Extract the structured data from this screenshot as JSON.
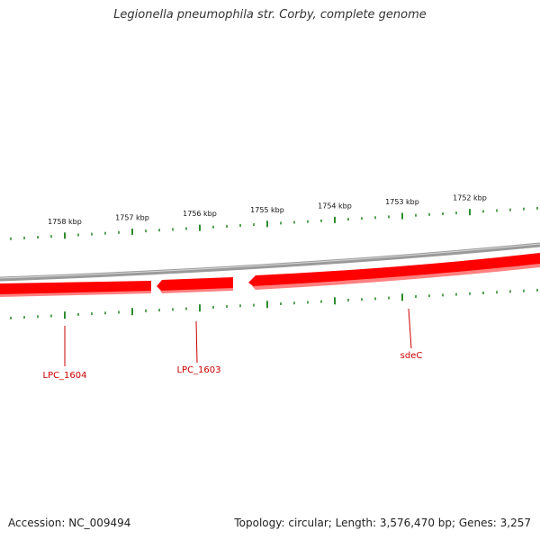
{
  "title": "Legionella pneumophila str. Corby, complete genome",
  "footer": {
    "accession": "Accession: NC_009494",
    "stats": "Topology: circular; Length: 3,576,470 bp; Genes: 3,257"
  },
  "colors": {
    "backbone": "#8a8a8a",
    "gene": "#ff0000",
    "gene_shadow": "#ff8080",
    "tick": "#2e8b2e",
    "label": "#cc0000"
  },
  "ticks_outer": [
    {
      "label": "1758 kbp"
    },
    {
      "label": "1757 kbp"
    },
    {
      "label": "1756 kbp"
    },
    {
      "label": "1755 kbp"
    },
    {
      "label": "1754 kbp"
    },
    {
      "label": "1753 kbp"
    },
    {
      "label": "1752 kbp"
    }
  ],
  "genes": [
    {
      "name": "LPC_1604",
      "strand": "-"
    },
    {
      "name": "LPC_1603",
      "strand": "-"
    },
    {
      "name": "sdeC",
      "strand": "-"
    }
  ]
}
